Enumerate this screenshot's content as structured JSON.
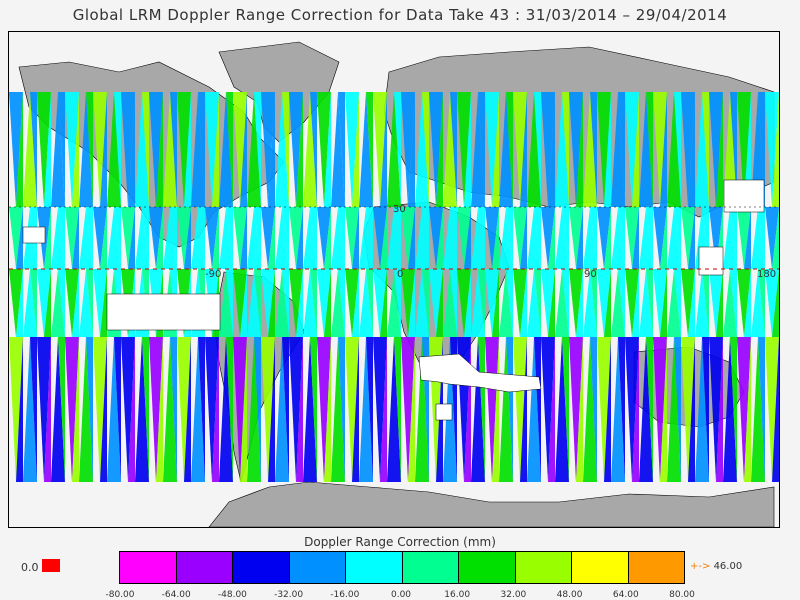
{
  "title": "Global LRM Doppler Range Correction for Data Take 43 : 31/03/2014 – 29/04/2014",
  "grid_labels": {
    "lat_30": "30",
    "lon_m90": "-90",
    "lon_0": "0",
    "lon_90": "90",
    "lon_180": "180"
  },
  "legend": {
    "title": "Doppler Range Correction (mm)",
    "ticks": [
      "-80.00",
      "-64.00",
      "-48.00",
      "-32.00",
      "-16.00",
      "0.00",
      "16.00",
      "32.00",
      "48.00",
      "64.00",
      "80.00"
    ],
    "colors": [
      "#ff00ff",
      "#9900ff",
      "#0000f0",
      "#0090ff",
      "#00ffff",
      "#00ff90",
      "#00e000",
      "#99ff00",
      "#ffff00",
      "#ff9900"
    ],
    "nodata_label": "0.0",
    "nodata_color": "#ff0000",
    "overflow_arrow": "+->",
    "overflow_value": "46.00"
  }
}
